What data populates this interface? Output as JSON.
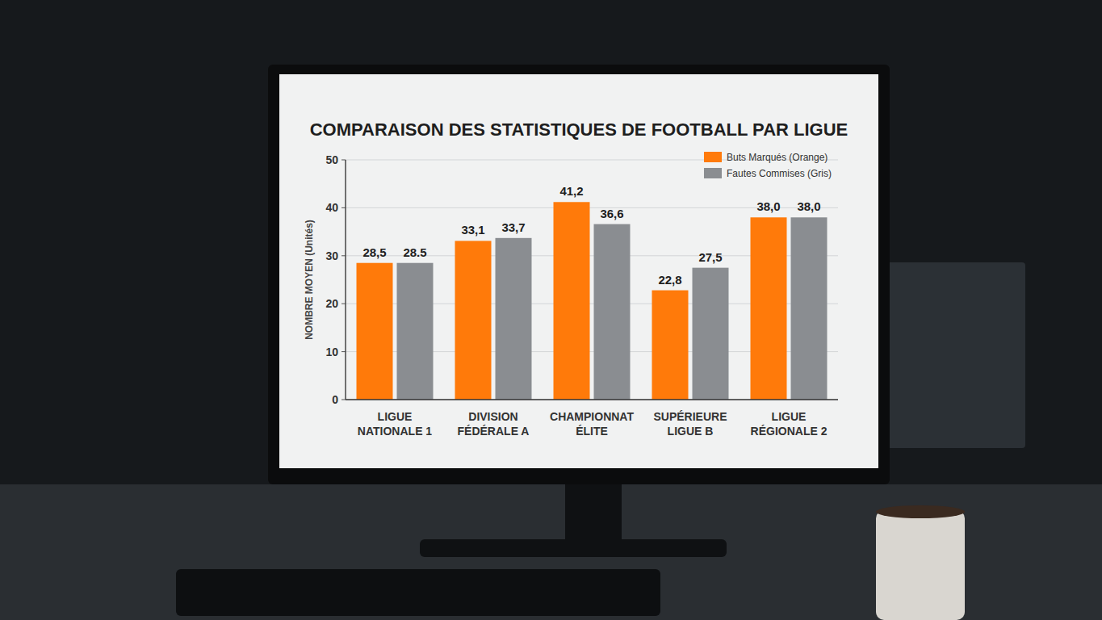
{
  "chart_data": {
    "type": "bar",
    "title": "COMPARAISON DES STATISTIQUES DE FOOTBALL PAR LIGUE",
    "y_label": "NOMBRE MOYEN (Unités)",
    "categories": [
      "LIGUE NATIONALE 1",
      "DIVISION FÉDÉRALE A",
      "CHAMPIONNAT ÉLITE",
      "SUPÉRIEURE LIGUE B",
      "LIGUE RÉGIONALE 2"
    ],
    "series": [
      {
        "name": "Buts Marqués (Orange)",
        "color": "#ff7a0a",
        "values": [
          28.5,
          33.1,
          41.2,
          22.8,
          38.0
        ],
        "value_labels": [
          "28,5",
          "33,1",
          "41,2",
          "22,8",
          "38,0"
        ]
      },
      {
        "name": "Fautes Commises (Gris)",
        "color": "#8a8d91",
        "values": [
          28.5,
          33.7,
          36.6,
          27.5,
          38.0
        ],
        "value_labels": [
          "28.5",
          "33,7",
          "36,6",
          "27,5",
          "38,0"
        ]
      }
    ],
    "ylim": [
      0,
      50
    ],
    "yticks": [
      0,
      10,
      20,
      30,
      40,
      50
    ],
    "grid": true,
    "legend": "top-right",
    "data_labels": true
  }
}
